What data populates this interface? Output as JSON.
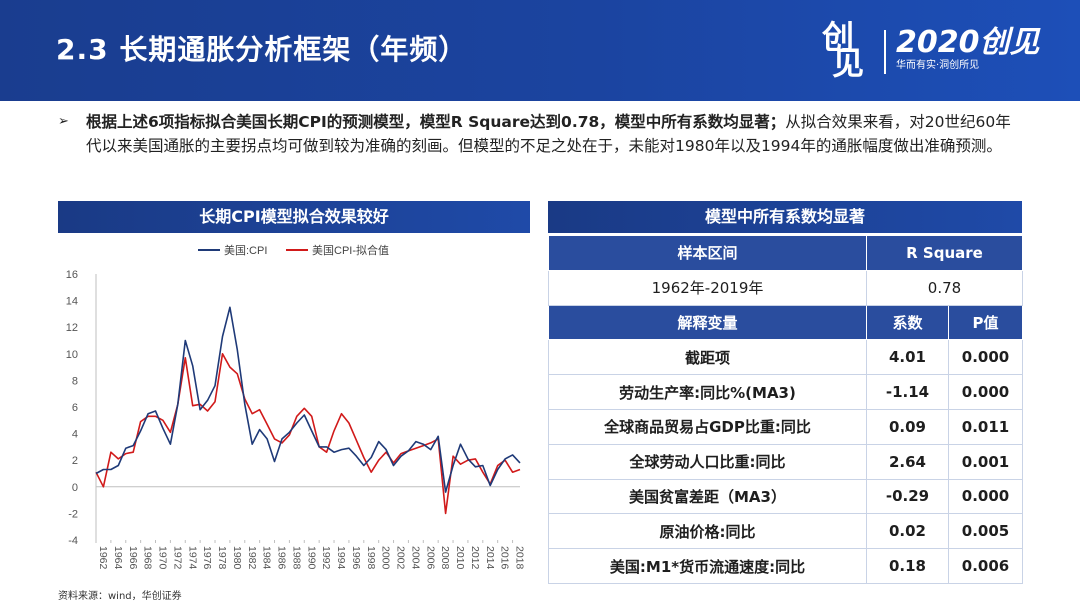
{
  "header": {
    "title": "2.3 长期通胀分析框架（年频）",
    "logo_left_1": "创",
    "logo_left_2": "见",
    "logo_right_big": "2020创见",
    "logo_right_small": "华而有实·洞创所见"
  },
  "bullet": {
    "bold": "根据上述6项指标拟合美国长期CPI的预测模型，模型R  Square达到0.78，模型中所有系数均显著；",
    "normal": "从拟合效果来看，对20世纪60年代以来美国通胀的主要拐点均可做到较为准确的刻画。但模型的不足之处在于，未能对1980年以及1994年的通胀幅度做出准确预测。"
  },
  "chart_title": "长期CPI模型拟合效果较好",
  "source": "资料来源：wind，华创证券",
  "chart_data": {
    "type": "line",
    "title": "",
    "xlabel": "",
    "ylabel": "",
    "ylim": [
      -4,
      16
    ],
    "yticks": [
      -4,
      -2,
      0,
      2,
      4,
      6,
      8,
      10,
      12,
      14,
      16
    ],
    "grid": false,
    "legend": "top",
    "x": [
      1962,
      1963,
      1964,
      1965,
      1966,
      1967,
      1968,
      1969,
      1970,
      1971,
      1972,
      1973,
      1974,
      1975,
      1976,
      1977,
      1978,
      1979,
      1980,
      1981,
      1982,
      1983,
      1984,
      1985,
      1986,
      1987,
      1988,
      1989,
      1990,
      1991,
      1992,
      1993,
      1994,
      1995,
      1996,
      1997,
      1998,
      1999,
      2000,
      2001,
      2002,
      2003,
      2004,
      2005,
      2006,
      2007,
      2008,
      2009,
      2010,
      2011,
      2012,
      2013,
      2014,
      2015,
      2016,
      2017,
      2018,
      2019
    ],
    "series": [
      {
        "name": "美国:CPI",
        "color": "#1f3a78",
        "values": [
          1.0,
          1.3,
          1.3,
          1.6,
          2.9,
          3.1,
          4.2,
          5.5,
          5.7,
          4.4,
          3.2,
          6.2,
          11.0,
          9.1,
          5.8,
          6.5,
          7.6,
          11.3,
          13.5,
          10.3,
          6.2,
          3.2,
          4.3,
          3.6,
          1.9,
          3.6,
          4.1,
          4.8,
          5.4,
          4.2,
          3.0,
          3.0,
          2.6,
          2.8,
          2.9,
          2.3,
          1.6,
          2.2,
          3.4,
          2.8,
          1.6,
          2.3,
          2.7,
          3.4,
          3.2,
          2.8,
          3.8,
          -0.4,
          1.6,
          3.2,
          2.1,
          1.5,
          1.6,
          0.1,
          1.3,
          2.1,
          2.4,
          1.8
        ]
      },
      {
        "name": "美国CPI-拟合值",
        "color": "#d11a1a",
        "values": [
          1.1,
          0.0,
          2.6,
          2.1,
          2.5,
          2.6,
          4.9,
          5.3,
          5.3,
          5.0,
          4.1,
          6.2,
          9.7,
          6.1,
          6.2,
          5.7,
          6.4,
          10.0,
          9.0,
          8.5,
          6.6,
          5.5,
          5.8,
          4.7,
          3.6,
          3.3,
          3.9,
          5.3,
          5.9,
          5.3,
          3.0,
          2.6,
          4.2,
          5.5,
          4.8,
          3.5,
          2.2,
          1.1,
          2.0,
          2.6,
          1.8,
          2.5,
          2.7,
          2.9,
          3.1,
          3.3,
          3.6,
          -2.0,
          2.3,
          1.7,
          2.0,
          2.1,
          1.1,
          0.2,
          1.6,
          2.0,
          1.1,
          1.3
        ]
      }
    ],
    "xtick_labels": [
      "1962",
      "1964",
      "1966",
      "1968",
      "1970",
      "1972",
      "1974",
      "1976",
      "1978",
      "1980",
      "1982",
      "1984",
      "1986",
      "1988",
      "1990",
      "1992",
      "1994",
      "1996",
      "1998",
      "2000",
      "2002",
      "2004",
      "2006",
      "2008",
      "2010",
      "2012",
      "2014",
      "2016",
      "2018"
    ]
  },
  "table": {
    "title": "模型中所有系数均显著",
    "head1": [
      "样本区间",
      "R Square"
    ],
    "row1": [
      "1962年-2019年",
      "0.78"
    ],
    "head2": [
      "解释变量",
      "系数",
      "P值"
    ],
    "rows": [
      [
        "截距项",
        "4.01",
        "0.000"
      ],
      [
        "劳动生产率:同比%(MA3)",
        "-1.14",
        "0.000"
      ],
      [
        "全球商品贸易占GDP比重:同比",
        "0.09",
        "0.011"
      ],
      [
        "全球劳动人口比重:同比",
        "2.64",
        "0.001"
      ],
      [
        "美国贫富差距（MA3）",
        "-0.29",
        "0.000"
      ],
      [
        "原油价格:同比",
        "0.02",
        "0.005"
      ],
      [
        "美国:M1*货币流通速度:同比",
        "0.18",
        "0.006"
      ]
    ]
  }
}
